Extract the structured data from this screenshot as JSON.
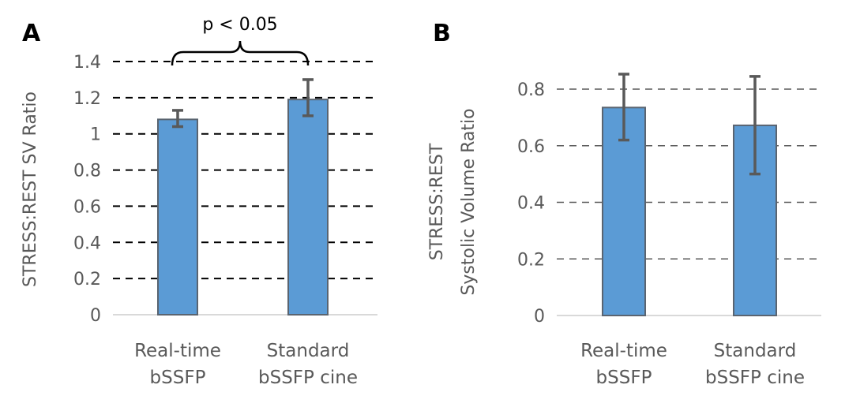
{
  "chart_data": [
    {
      "type": "bar",
      "panel_label": "A",
      "categories": [
        [
          "Real-time",
          "bSSFP"
        ],
        [
          "Standard",
          "bSSFP cine"
        ]
      ],
      "values": [
        1.08,
        1.19
      ],
      "error_low": [
        1.04,
        1.1
      ],
      "error_high": [
        1.13,
        1.3
      ],
      "ylabel": "STRESS:REST  SV  Ratio",
      "ylim": [
        0,
        1.4
      ],
      "yticks": [
        "0",
        "0.2",
        "0.4",
        "0.6",
        "0.8",
        "1",
        "1.2",
        "1.4"
      ],
      "grid": true,
      "gridline_color": "#000000",
      "annotation": "p < 0.05",
      "bar_color": "#5B9BD5"
    },
    {
      "type": "bar",
      "panel_label": "B",
      "categories": [
        [
          "Real-time",
          "bSSFP"
        ],
        [
          "Standard",
          "bSSFP cine"
        ]
      ],
      "values": [
        0.735,
        0.672
      ],
      "error_low": [
        0.62,
        0.5
      ],
      "error_high": [
        0.853,
        0.845
      ],
      "ylabel": [
        "STRESS:REST",
        "Systolic Volume Ratio"
      ],
      "ylim": [
        0,
        0.8
      ],
      "yticks": [
        "0",
        "0.2",
        "0.4",
        "0.6",
        "0.8"
      ],
      "grid": true,
      "gridline_color": "#595959",
      "bar_color": "#5B9BD5"
    }
  ]
}
